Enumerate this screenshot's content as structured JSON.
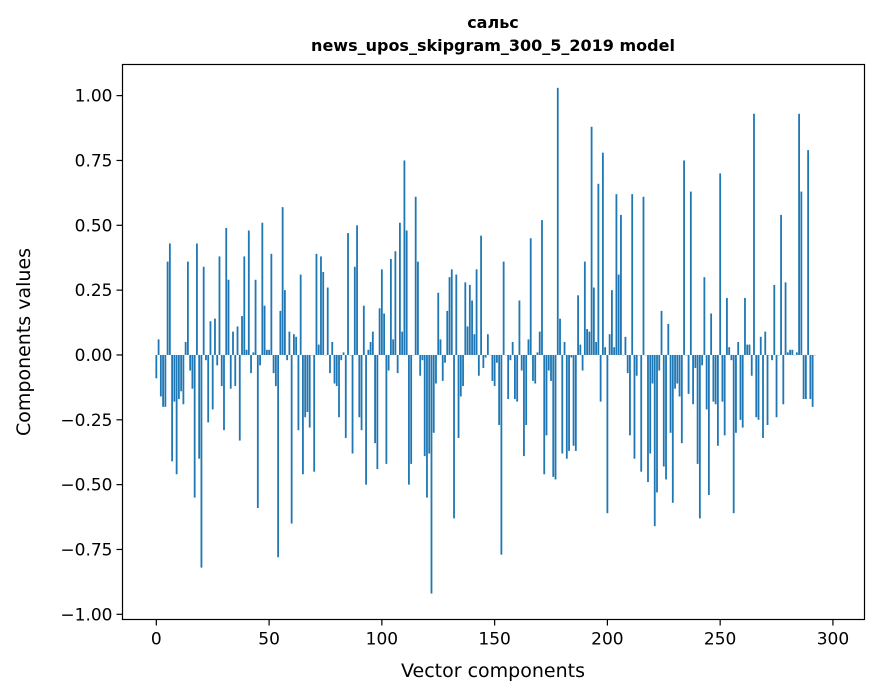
{
  "chart_data": {
    "type": "bar",
    "title": "сальс",
    "subtitle": "news_upos_skipgram_300_5_2019 model",
    "xlabel": "Vector components",
    "ylabel": "Components values",
    "xlim": [
      -15,
      314
    ],
    "ylim": [
      -1.02,
      1.12
    ],
    "xticks": [
      0,
      50,
      100,
      150,
      200,
      250,
      300
    ],
    "yticks": [
      1.0,
      0.75,
      0.5,
      0.25,
      0.0,
      -0.25,
      -0.5,
      -0.75,
      -1.0
    ],
    "ytick_labels": [
      "1.00",
      "0.75",
      "0.50",
      "0.25",
      "0.00",
      "−0.25",
      "−0.50",
      "−0.75",
      "−1.00"
    ],
    "bar_color": "#1f77b4",
    "values": [
      -0.09,
      0.06,
      -0.16,
      -0.2,
      -0.2,
      0.36,
      0.43,
      -0.41,
      -0.18,
      -0.46,
      -0.17,
      -0.14,
      -0.19,
      0.05,
      0.36,
      -0.06,
      -0.13,
      -0.55,
      0.43,
      -0.4,
      -0.82,
      0.34,
      -0.02,
      -0.26,
      0.13,
      -0.21,
      0.14,
      -0.04,
      0.38,
      -0.12,
      -0.29,
      0.49,
      0.29,
      -0.13,
      0.09,
      -0.12,
      0.11,
      -0.33,
      0.15,
      0.38,
      0.02,
      0.48,
      -0.07,
      0.01,
      0.29,
      -0.59,
      -0.04,
      0.51,
      0.19,
      0.02,
      0.02,
      0.39,
      -0.07,
      -0.12,
      -0.78,
      0.17,
      0.57,
      0.25,
      -0.02,
      0.09,
      -0.65,
      0.08,
      0.07,
      -0.29,
      0.31,
      -0.46,
      -0.24,
      -0.22,
      -0.28,
      0.0,
      -0.45,
      0.39,
      0.04,
      0.38,
      0.32,
      0.0,
      0.26,
      -0.07,
      0.05,
      -0.11,
      -0.12,
      -0.24,
      -0.02,
      0.01,
      -0.32,
      0.47,
      0.0,
      -0.38,
      0.34,
      0.5,
      -0.24,
      -0.29,
      0.19,
      -0.5,
      0.02,
      0.05,
      0.09,
      -0.34,
      -0.44,
      0.18,
      0.33,
      0.16,
      -0.42,
      -0.06,
      0.37,
      0.06,
      0.4,
      -0.07,
      0.51,
      0.09,
      0.75,
      0.48,
      -0.5,
      -0.42,
      0.0,
      0.61,
      0.36,
      -0.08,
      -0.02,
      -0.39,
      -0.55,
      -0.38,
      -0.92,
      -0.3,
      -0.11,
      0.24,
      0.06,
      -0.1,
      -0.03,
      0.17,
      0.3,
      0.33,
      -0.63,
      0.31,
      -0.32,
      -0.16,
      -0.12,
      0.28,
      0.11,
      0.27,
      0.21,
      0.08,
      0.33,
      -0.08,
      0.46,
      -0.05,
      -0.01,
      0.08,
      0.0,
      -0.1,
      -0.12,
      -0.03,
      -0.27,
      -0.77,
      0.36,
      0.0,
      -0.17,
      -0.02,
      0.05,
      -0.17,
      -0.18,
      0.21,
      -0.06,
      -0.39,
      -0.27,
      0.06,
      0.45,
      -0.1,
      -0.11,
      0.01,
      0.09,
      0.52,
      -0.46,
      -0.31,
      -0.06,
      -0.1,
      -0.47,
      -0.48,
      1.03,
      0.14,
      -0.38,
      0.05,
      -0.4,
      -0.37,
      -0.01,
      -0.35,
      -0.37,
      0.23,
      0.04,
      -0.06,
      0.36,
      0.1,
      0.09,
      0.88,
      0.26,
      0.05,
      0.66,
      -0.18,
      0.78,
      0.03,
      -0.61,
      0.08,
      0.25,
      0.03,
      0.62,
      0.31,
      0.54,
      0.0,
      0.07,
      -0.07,
      -0.31,
      0.62,
      -0.4,
      -0.08,
      0.0,
      -0.45,
      0.61,
      0.0,
      -0.49,
      -0.38,
      -0.11,
      -0.66,
      -0.53,
      -0.06,
      0.17,
      -0.43,
      -0.48,
      0.12,
      -0.3,
      -0.57,
      -0.13,
      -0.11,
      -0.16,
      -0.34,
      0.75,
      0.0,
      -0.15,
      0.63,
      -0.19,
      -0.05,
      -0.42,
      -0.63,
      -0.04,
      0.3,
      -0.21,
      -0.54,
      0.16,
      -0.18,
      -0.19,
      -0.35,
      0.7,
      -0.18,
      -0.31,
      0.22,
      0.03,
      -0.02,
      -0.61,
      -0.3,
      0.05,
      -0.25,
      -0.28,
      0.22,
      0.04,
      0.04,
      -0.08,
      0.93,
      -0.24,
      -0.25,
      0.07,
      -0.32,
      0.09,
      -0.27,
      0.0,
      -0.02,
      0.27,
      -0.24,
      0.0,
      0.54,
      -0.19,
      0.28,
      0.01,
      0.02,
      0.02,
      0.0,
      0.01,
      0.93,
      0.63,
      -0.17,
      -0.17,
      0.79,
      -0.17,
      -0.2,
      0.0
    ]
  }
}
